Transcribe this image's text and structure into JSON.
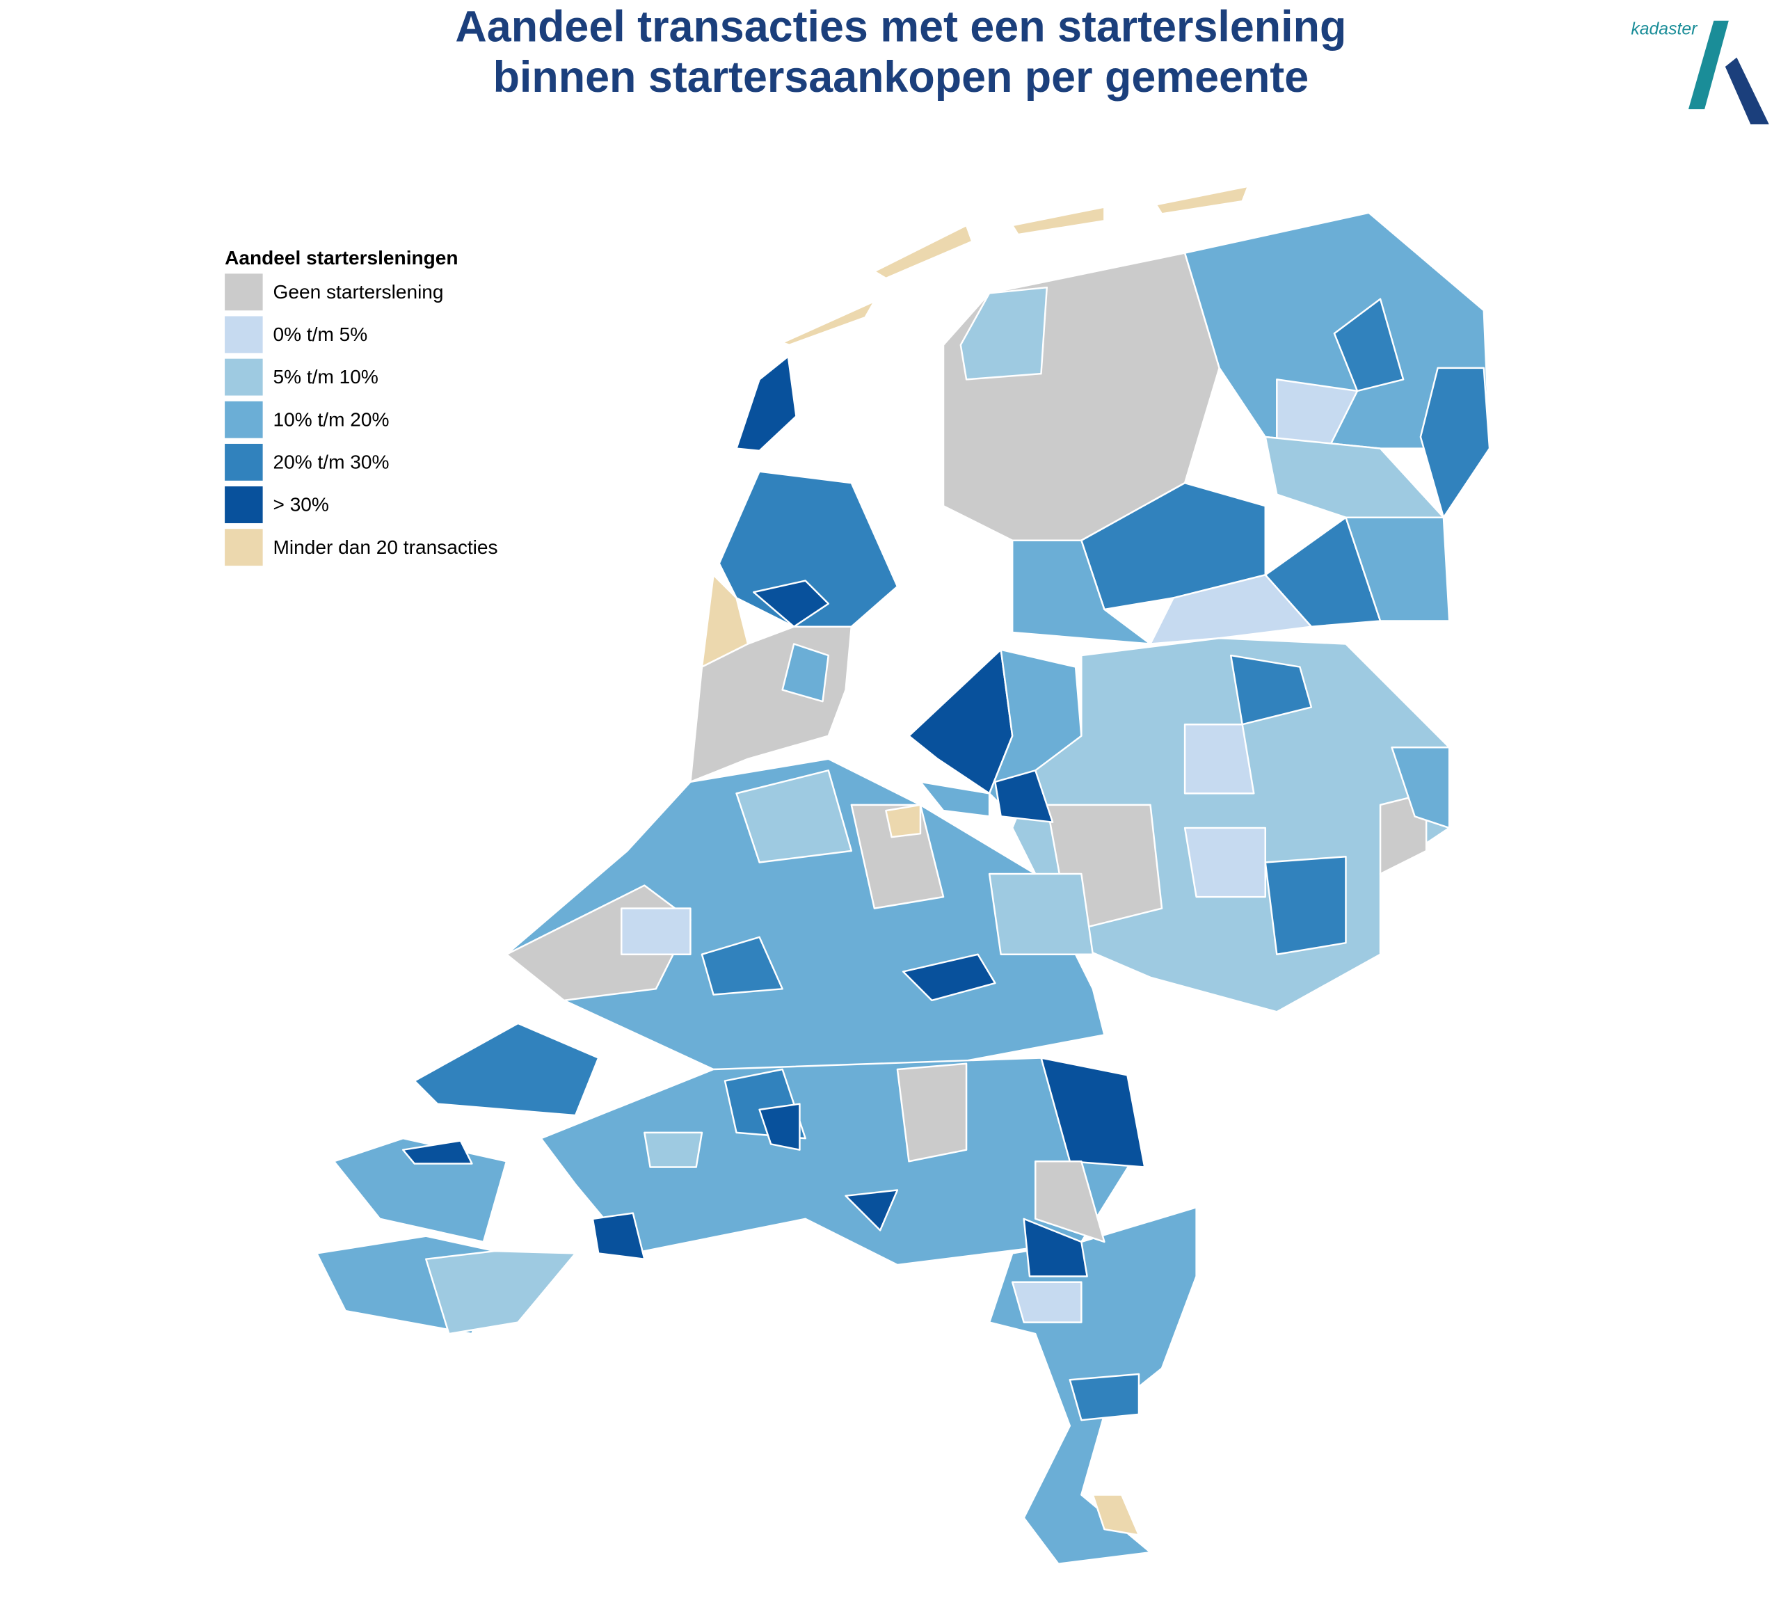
{
  "header": {
    "title": [
      "Aandeel transacties met een starterslening",
      "binnen startersaankopen per gemeente"
    ],
    "logo": "kadaster"
  },
  "legend": {
    "title": "Aandeel startersleningen",
    "items": [
      {
        "label": "Geen starterslening",
        "color": "#cbcbcb"
      },
      {
        "label": "0% t/m 5%",
        "color": "#c6daf0"
      },
      {
        "label": "5% t/m 10%",
        "color": "#9ecae1"
      },
      {
        "label": "10% t/m 20%",
        "color": "#6baed6"
      },
      {
        "label": "20% t/m 30%",
        "color": "#3182bd"
      },
      {
        "label": "> 30%",
        "color": "#08519c"
      },
      {
        "label": "Minder dan 20 transacties",
        "color": "#ecd8ae"
      }
    ]
  }
}
